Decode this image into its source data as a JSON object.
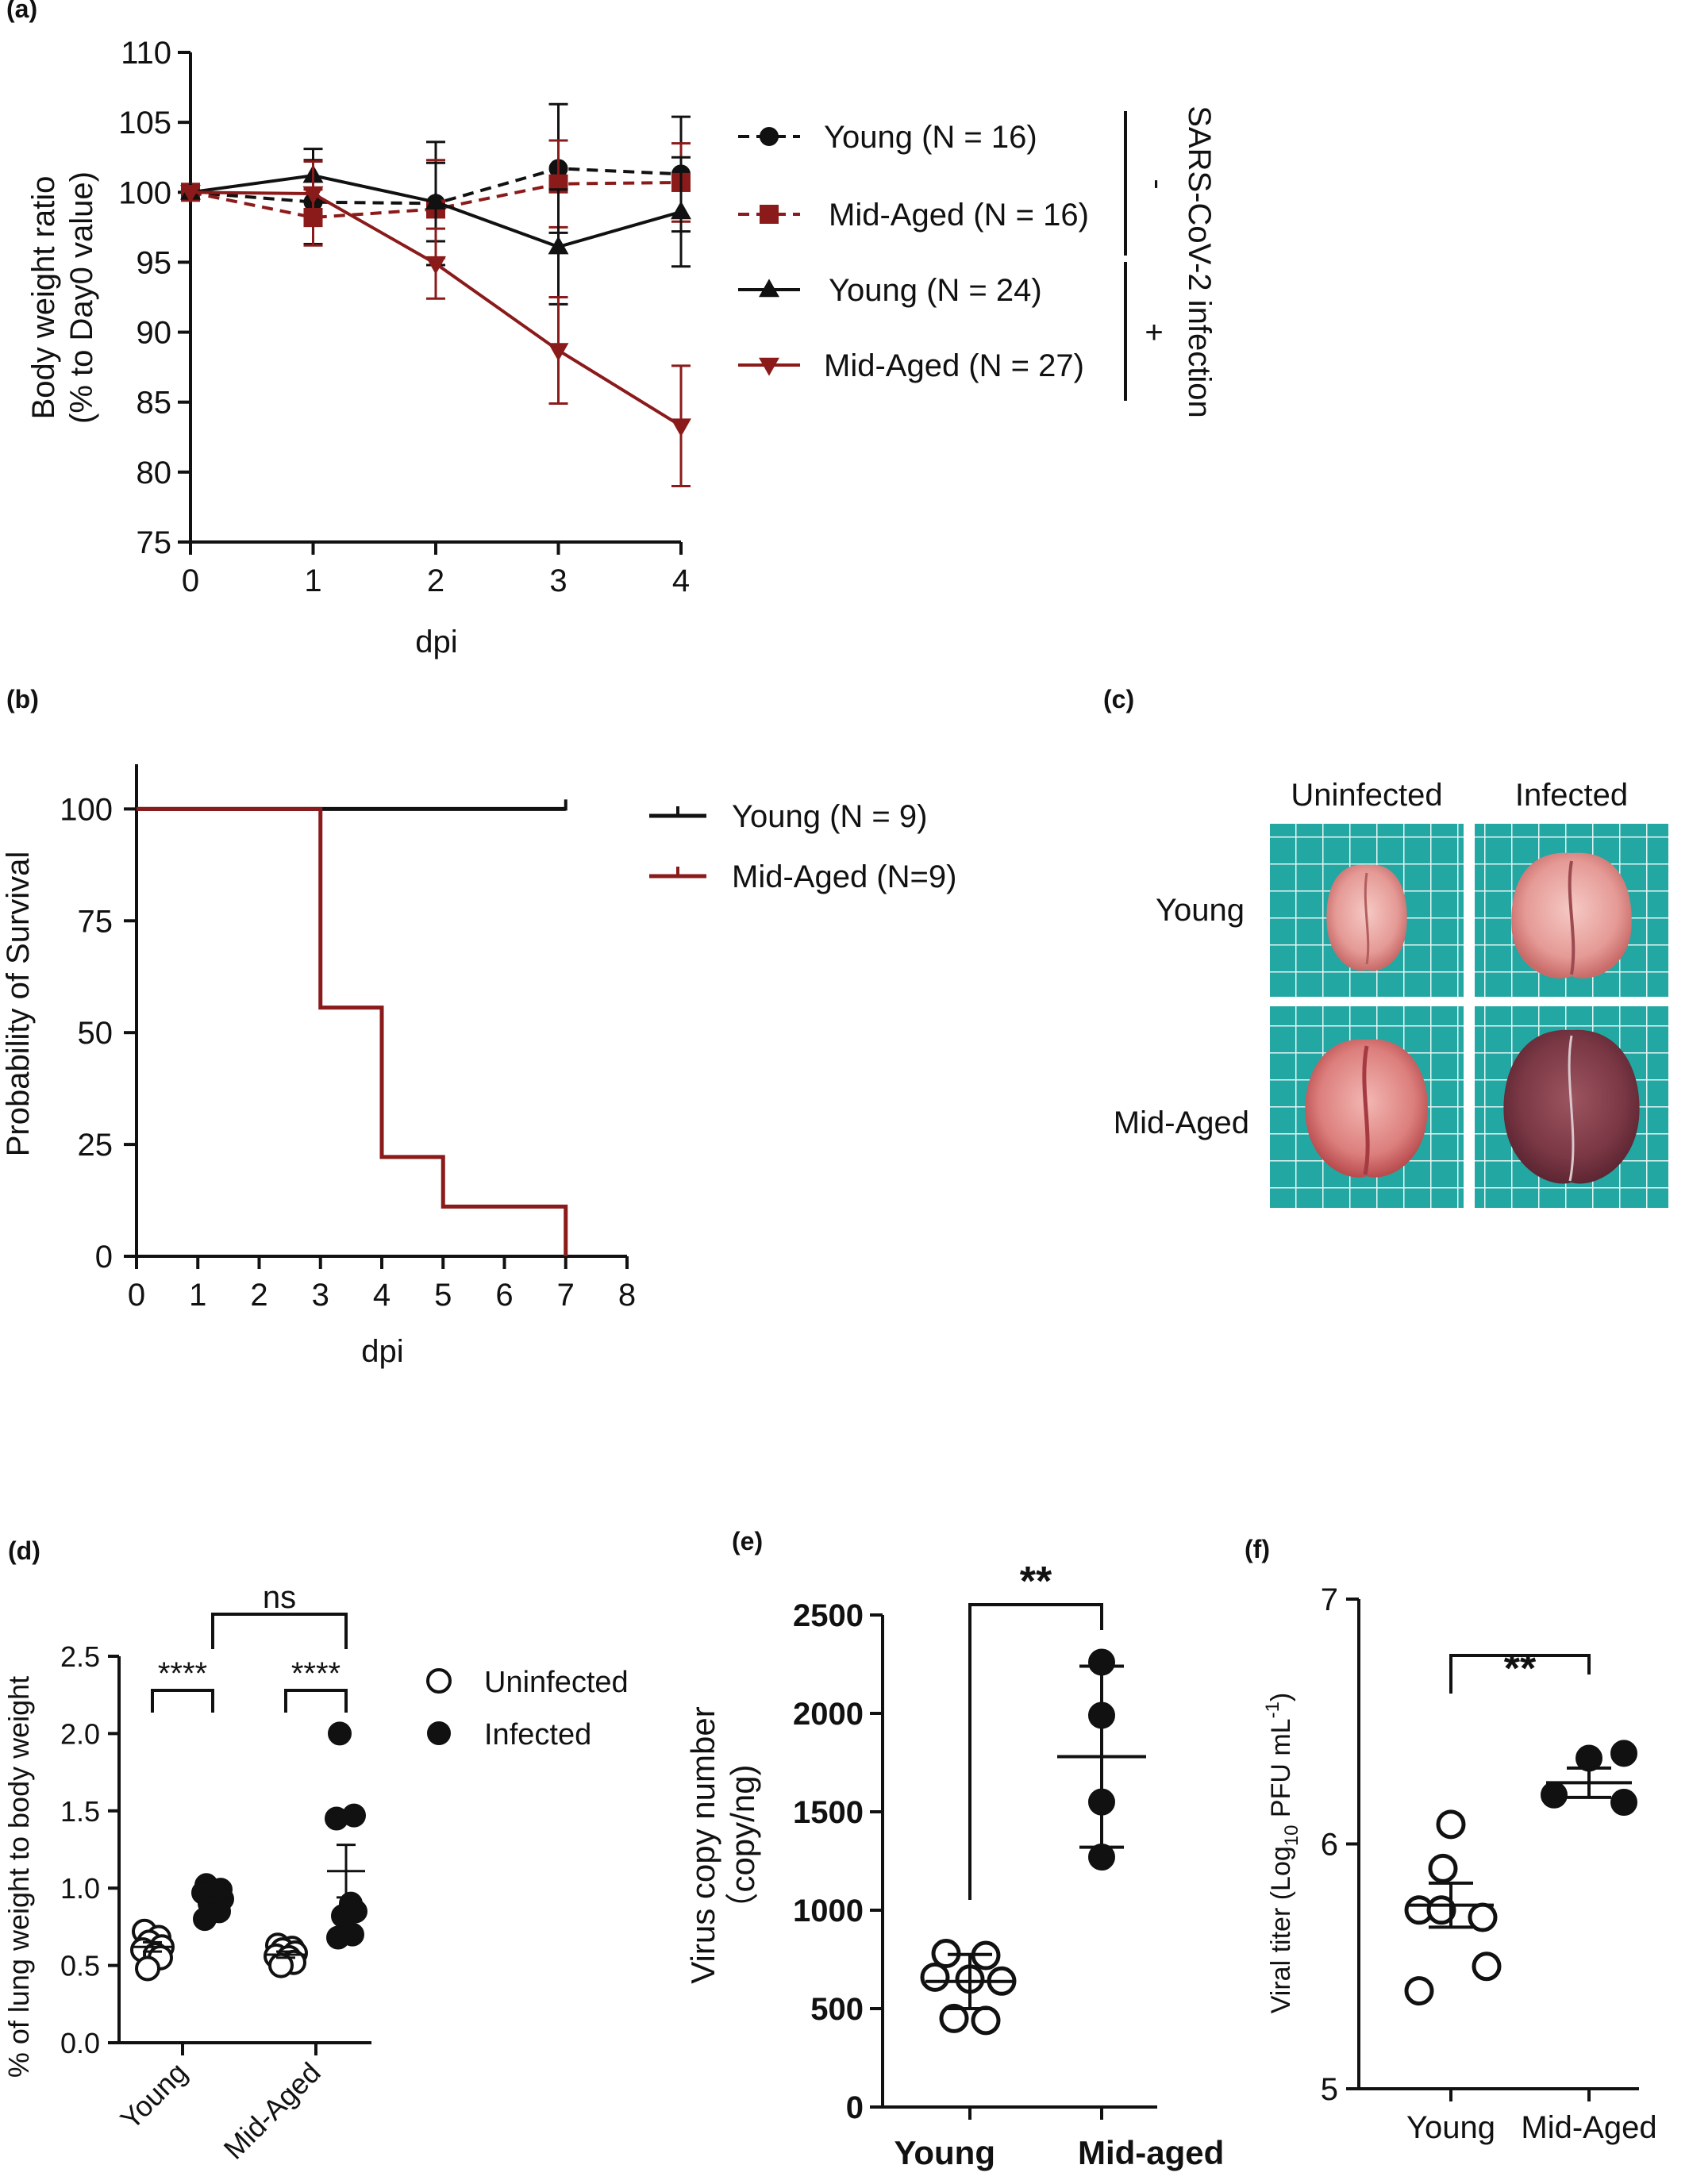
{
  "panels": {
    "a": "(a)",
    "b": "(b)",
    "c": "(c)",
    "d": "(d)",
    "e": "(e)",
    "f": "(f)"
  },
  "colors": {
    "black": "#111111",
    "dark_red": "#8b1a1a"
  },
  "chart_data": [
    {
      "id": "a",
      "type": "line",
      "xlabel": "dpi",
      "ylabel_line1": "Body weight ratio",
      "ylabel_line2": "(% to Day0 value)",
      "x": [
        0,
        1,
        2,
        3,
        4
      ],
      "xlim": [
        0,
        4
      ],
      "ylim": [
        75,
        110
      ],
      "yticks": [
        75,
        80,
        85,
        90,
        95,
        100,
        105,
        110
      ],
      "series": [
        {
          "name": "Young (N = 16)",
          "group": "-",
          "color": "#111111",
          "dash": true,
          "marker": "circle",
          "values": [
            100,
            99.3,
            99.2,
            101.7,
            101.3
          ],
          "err": [
            0,
            3.0,
            4.4,
            4.6,
            4.1
          ]
        },
        {
          "name": "Mid-Aged (N = 16)",
          "group": "-",
          "color": "#8b1a1a",
          "dash": true,
          "marker": "square",
          "values": [
            100,
            98.2,
            98.8,
            100.6,
            100.7
          ],
          "err": [
            0,
            2.0,
            3.5,
            3.1,
            2.8
          ]
        },
        {
          "name": "Young (N = 24)",
          "group": "+",
          "color": "#111111",
          "dash": false,
          "marker": "triangle-up",
          "values": [
            100,
            101.2,
            99.3,
            96.1,
            98.6
          ],
          "err": [
            0,
            1.9,
            2.8,
            4.1,
            3.9
          ]
        },
        {
          "name": "Mid-Aged (N = 27)",
          "group": "+",
          "color": "#8b1a1a",
          "dash": false,
          "marker": "triangle-down",
          "values": [
            100,
            99.9,
            94.9,
            88.7,
            83.3
          ],
          "err": [
            0,
            2.3,
            2.5,
            3.8,
            4.3
          ]
        }
      ],
      "legend_group_label": "SARS-CoV-2 infection",
      "legend_minus": "-",
      "legend_plus": "+"
    },
    {
      "id": "b",
      "type": "line",
      "xlabel": "dpi",
      "ylabel": "Probability of Survival",
      "xlim": [
        0,
        8
      ],
      "ylim": [
        0,
        110
      ],
      "xticks": [
        0,
        1,
        2,
        3,
        4,
        5,
        6,
        7,
        8
      ],
      "yticks": [
        0,
        25,
        50,
        75,
        100
      ],
      "series": [
        {
          "name": "Young (N = 9)",
          "color": "#111111",
          "steps": [
            [
              0,
              100
            ],
            [
              7,
              100
            ]
          ]
        },
        {
          "name": "Mid-Aged (N=9)",
          "color": "#8b1a1a",
          "steps": [
            [
              0,
              100
            ],
            [
              3,
              100
            ],
            [
              3,
              55.6
            ],
            [
              4,
              55.6
            ],
            [
              4,
              22.2
            ],
            [
              5,
              22.2
            ],
            [
              5,
              11.1
            ],
            [
              7,
              11.1
            ],
            [
              7,
              0
            ]
          ]
        }
      ]
    },
    {
      "id": "d",
      "type": "scatter",
      "ylabel": "% of lung weight to body weight",
      "ylim": [
        0,
        2.5
      ],
      "yticks": [
        0.0,
        0.5,
        1.0,
        1.5,
        2.0,
        2.5
      ],
      "ytick_labels": [
        "0.0",
        "0.5",
        "1.0",
        "1.5",
        "2.0",
        "2.5"
      ],
      "categories": [
        "Young",
        "Mid-Aged"
      ],
      "series": [
        {
          "name": "Uninfected",
          "filled": false,
          "groups": [
            [
              0.72,
              0.68,
              0.65,
              0.62,
              0.6,
              0.57,
              0.55,
              0.48
            ],
            [
              0.63,
              0.61,
              0.6,
              0.58,
              0.56,
              0.55,
              0.52,
              0.5
            ]
          ],
          "mean": [
            0.62,
            0.57
          ],
          "sem": [
            0.03,
            0.02
          ]
        },
        {
          "name": "Infected",
          "filled": true,
          "groups": [
            [
              1.02,
              0.99,
              0.97,
              0.95,
              0.93,
              0.9,
              0.85,
              0.8
            ],
            [
              2.0,
              1.47,
              1.45,
              0.9,
              0.85,
              0.82,
              0.7,
              0.68
            ]
          ],
          "mean": [
            0.94,
            1.11
          ],
          "sem": [
            0.03,
            0.17
          ]
        }
      ],
      "annotations": [
        "****",
        "****",
        "ns"
      ]
    },
    {
      "id": "e",
      "type": "scatter",
      "ylabel": "Virus copy number",
      "ylabel2": "（copy/ng)",
      "ylim": [
        0,
        2500
      ],
      "yticks": [
        0,
        500,
        1000,
        1500,
        2000,
        2500
      ],
      "categories": [
        "Young",
        "Mid-aged"
      ],
      "groups": [
        [
          780,
          770,
          660,
          650,
          640,
          450,
          440
        ],
        [
          2260,
          1990,
          1550,
          1270
        ]
      ],
      "filled": [
        false,
        true
      ],
      "mean": [
        638,
        1780
      ],
      "lower": [
        500,
        1320
      ],
      "upper": [
        775,
        2240
      ],
      "annotation": "**"
    },
    {
      "id": "f",
      "type": "scatter",
      "ylabel_main": "Viral titer (Log",
      "ylabel_sub": "10",
      "ylabel_unit": " PFU mL",
      "ylabel_sup": "-1",
      "ylabel_close": ")",
      "ylim": [
        5,
        7
      ],
      "yticks": [
        5,
        6,
        7
      ],
      "categories": [
        "Young",
        "Mid-Aged"
      ],
      "groups": [
        [
          6.08,
          5.9,
          5.73,
          5.7,
          5.73,
          5.5,
          5.4
        ],
        [
          6.37,
          6.35,
          6.2,
          6.17
        ]
      ],
      "filled": [
        false,
        true
      ],
      "mean": [
        5.75,
        6.25
      ],
      "sem": [
        0.09,
        0.06
      ],
      "annotation": "**"
    }
  ],
  "photo_panel": {
    "col_labels": [
      "Uninfected",
      "Infected"
    ],
    "row_labels": [
      "Young",
      "Mid-Aged"
    ]
  }
}
